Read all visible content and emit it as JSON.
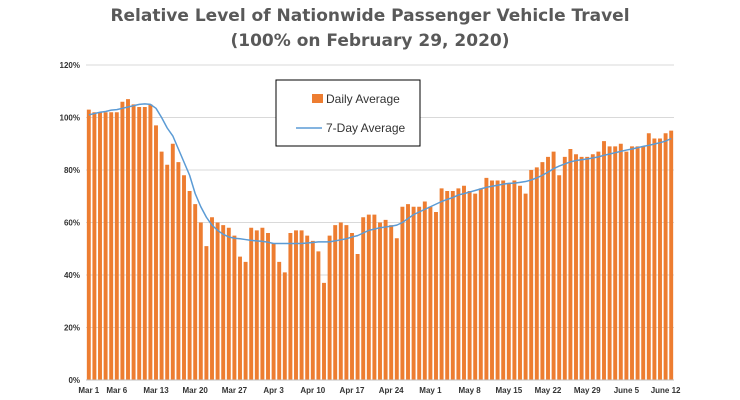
{
  "chart_data": {
    "type": "bar",
    "title": "Relative Level of Nationwide Passenger Vehicle Travel",
    "subtitle": "(100% on February 29, 2020)",
    "xlabel": "",
    "ylabel": "",
    "ylim": [
      0,
      120
    ],
    "yticks": [
      "0%",
      "20%",
      "40%",
      "60%",
      "80%",
      "100%",
      "120%"
    ],
    "grid": true,
    "legend_position": "top-center",
    "colors": {
      "bars": "#ED7D31",
      "line": "#5B9BD5",
      "grid": "#D9D9D9"
    },
    "xtick_labels": [
      {
        "index": 0,
        "label": "Mar 1"
      },
      {
        "index": 5,
        "label": "Mar 6"
      },
      {
        "index": 12,
        "label": "Mar 13"
      },
      {
        "index": 19,
        "label": "Mar 20"
      },
      {
        "index": 26,
        "label": "Mar 27"
      },
      {
        "index": 33,
        "label": "Apr 3"
      },
      {
        "index": 40,
        "label": "Apr 10"
      },
      {
        "index": 47,
        "label": "Apr 17"
      },
      {
        "index": 54,
        "label": "Apr 24"
      },
      {
        "index": 61,
        "label": "May 1"
      },
      {
        "index": 68,
        "label": "May 8"
      },
      {
        "index": 75,
        "label": "May 15"
      },
      {
        "index": 82,
        "label": "May 22"
      },
      {
        "index": 89,
        "label": "May 29"
      },
      {
        "index": 96,
        "label": "June 5"
      },
      {
        "index": 103,
        "label": "June 12"
      }
    ],
    "series": [
      {
        "name": "Daily Average",
        "type": "bar",
        "values": [
          103,
          102,
          102,
          102,
          102,
          102,
          106,
          107,
          105,
          104,
          104,
          105,
          97,
          87,
          82,
          90,
          83,
          78,
          72,
          67,
          60,
          51,
          62,
          60,
          59,
          58,
          55,
          47,
          45,
          58,
          57,
          58,
          56,
          52,
          45,
          41,
          56,
          57,
          57,
          55,
          53,
          49,
          37,
          55,
          59,
          60,
          59,
          56,
          48,
          62,
          63,
          63,
          60,
          61,
          59,
          54,
          66,
          67,
          66,
          66,
          68,
          66,
          64,
          73,
          72,
          72,
          73,
          74,
          72,
          71,
          73,
          77,
          76,
          76,
          76,
          75,
          76,
          74,
          71,
          80,
          81,
          83,
          85,
          87,
          78,
          85,
          88,
          86,
          85,
          85,
          86,
          87,
          91,
          89,
          89,
          90,
          87,
          89,
          89,
          89,
          94,
          92,
          92,
          94,
          95
        ]
      },
      {
        "name": "7-Day Average",
        "type": "line",
        "values": [
          101,
          101.5,
          102,
          102.3,
          102.8,
          103,
          103.5,
          104,
          104.5,
          105,
          105.2,
          105,
          103.5,
          100,
          96,
          93,
          88,
          83,
          78,
          71,
          66,
          62,
          59,
          57,
          55.5,
          54.5,
          54,
          53.8,
          53.5,
          53.2,
          53,
          52.8,
          52.5,
          52,
          52,
          52,
          52,
          52,
          52,
          52.2,
          52.4,
          52.6,
          52.6,
          52.6,
          53,
          53.4,
          53.8,
          54.5,
          55,
          56,
          57,
          57.5,
          58,
          58.3,
          58.6,
          59,
          60,
          61.5,
          63,
          64,
          65,
          66,
          67,
          68,
          68.8,
          69.5,
          70.5,
          71,
          71.6,
          72.2,
          72.8,
          73.4,
          73.8,
          74.2,
          74.6,
          74.9,
          75,
          75.3,
          75.6,
          76.2,
          77,
          78,
          79.2,
          80.5,
          81.5,
          82.3,
          83.1,
          83.6,
          83.9,
          84.2,
          84.6,
          85,
          85.6,
          86.1,
          86.6,
          87.1,
          87.6,
          88,
          88.5,
          89,
          89.4,
          89.9,
          90.4,
          91,
          92
        ]
      }
    ]
  }
}
